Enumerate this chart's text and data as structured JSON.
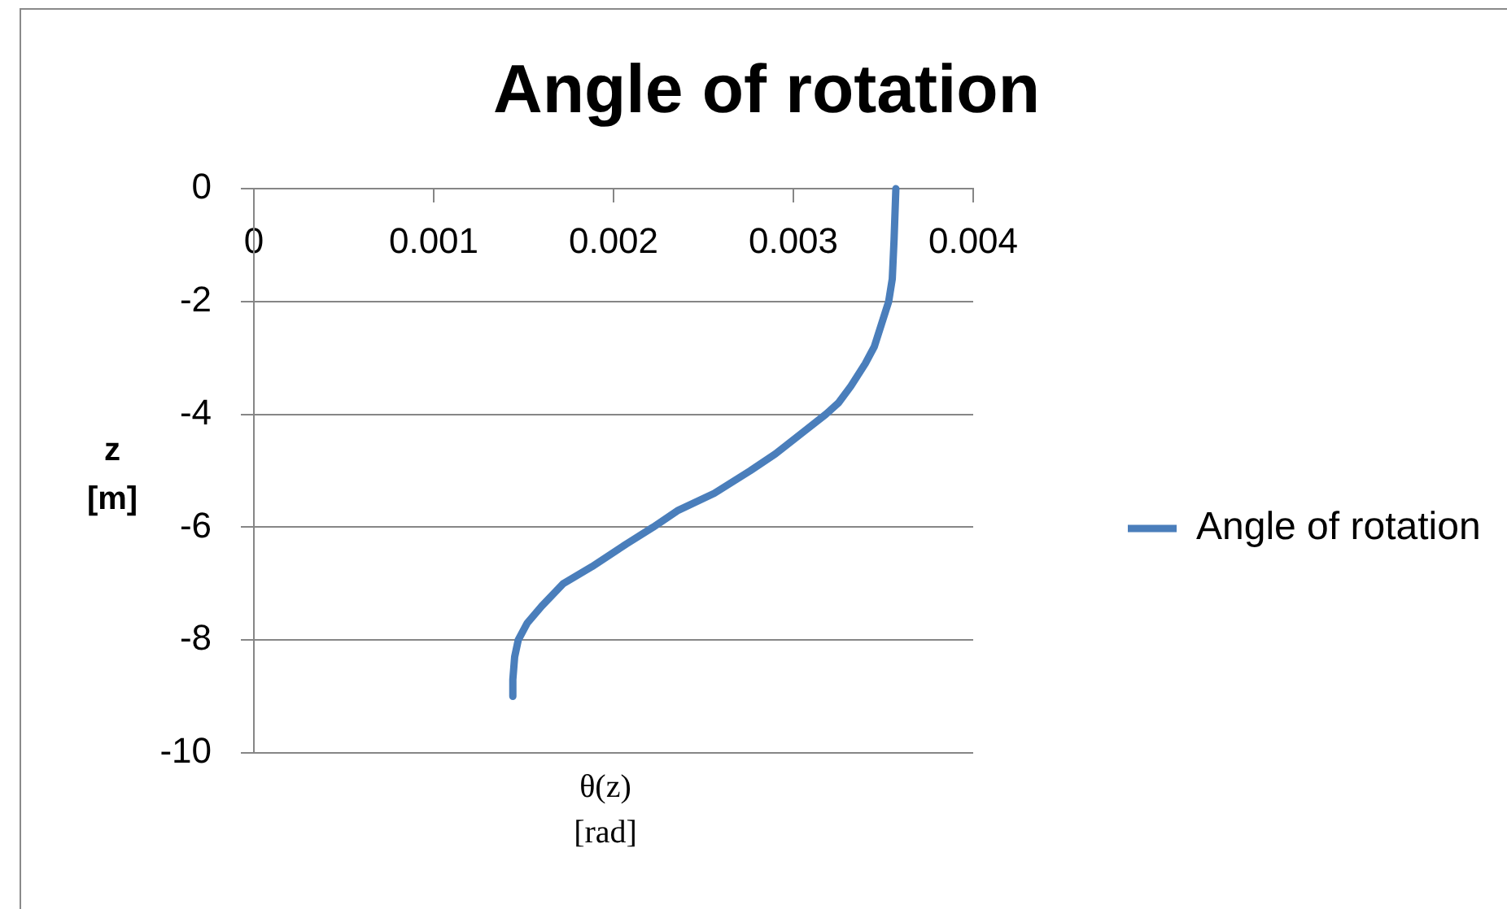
{
  "chart_data": {
    "type": "line",
    "title": "Angle of rotation",
    "xlabel": "θ(z) [rad]",
    "ylabel": "z [m]",
    "xlim": [
      0,
      0.004
    ],
    "xticks": [
      0,
      0.001,
      0.002,
      0.003,
      0.004
    ],
    "ylim": [
      -10,
      0
    ],
    "yticks": [
      -10,
      -8,
      -6,
      -4,
      -2,
      0
    ],
    "grid": "y",
    "legend": "right",
    "marker": "none",
    "line_style": "solid",
    "series": [
      {
        "name": "Angle of rotation",
        "color": "#4a7ebb",
        "x": [
          0.00357,
          0.00356,
          0.00355,
          0.00353,
          0.00349,
          0.00345,
          0.0034,
          0.00332,
          0.00325,
          0.00318,
          0.00306,
          0.0029,
          0.00276,
          0.00256,
          0.00236,
          0.00222,
          0.00207,
          0.00188,
          0.00172,
          0.0016,
          0.00152,
          0.00147,
          0.00145,
          0.00144,
          0.00144
        ],
        "values": [
          0,
          -0.9,
          -1.6,
          -2,
          -2.4,
          -2.8,
          -3.1,
          -3.5,
          -3.8,
          -4,
          -4.3,
          -4.7,
          -5,
          -5.4,
          -5.7,
          -6,
          -6.3,
          -6.7,
          -7,
          -7.4,
          -7.7,
          -8,
          -8.3,
          -8.7,
          -9
        ]
      }
    ]
  }
}
